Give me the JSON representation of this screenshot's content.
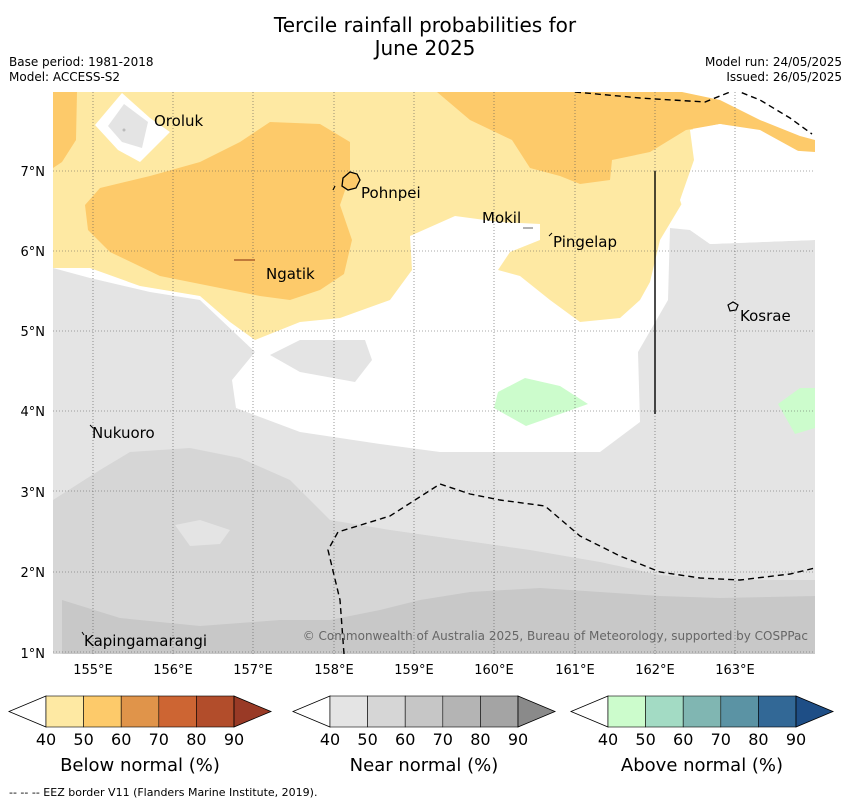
{
  "header": {
    "title_line1": "Tercile rainfall probabilities for",
    "title_line2": "June 2025",
    "base_period": "Base period: 1981-2018",
    "model": "Model: ACCESS-S2",
    "model_run": "Model run: 24/05/2025",
    "issued": "Issued: 26/05/2025"
  },
  "map": {
    "lat_labels": [
      "7°N",
      "6°N",
      "5°N",
      "4°N",
      "3°N",
      "2°N",
      "1°N"
    ],
    "lon_labels": [
      "155°E",
      "156°E",
      "157°E",
      "158°E",
      "159°E",
      "160°E",
      "161°E",
      "162°E",
      "163°E"
    ],
    "places": {
      "oroluk": "Oroluk",
      "pohnpei": "Pohnpei",
      "mokil": "Mokil",
      "pingelap": "Pingelap",
      "ngatik": "Ngatik",
      "kosrae": "Kosrae",
      "nukuoro": "Nukuoro",
      "kapingamarangi": "Kapingamarangi"
    },
    "copyright": "© Commonwealth of Australia 2025, Bureau of Meteorology, supported by COSPPac"
  },
  "legend": {
    "ticks": [
      "40",
      "50",
      "60",
      "70",
      "80",
      "90"
    ],
    "below": {
      "title": "Below normal (%)",
      "colors": [
        "#fee9a3",
        "#fdca6a",
        "#e0944a",
        "#cd6533",
        "#b24d2b",
        "#993a26"
      ]
    },
    "near": {
      "title": "Near normal (%)",
      "colors": [
        "#e4e4e4",
        "#d6d6d6",
        "#c6c6c6",
        "#b4b4b4",
        "#a4a4a4",
        "#8a8a8a"
      ]
    },
    "above": {
      "title": "Above normal (%)",
      "colors": [
        "#ccfccc",
        "#a3dbc4",
        "#80b6b2",
        "#5b93a4",
        "#326896",
        "#1e4e86"
      ]
    }
  },
  "footnote": "--  --  -- EEZ border V11 (Flanders Marine Institute, 2019)."
}
